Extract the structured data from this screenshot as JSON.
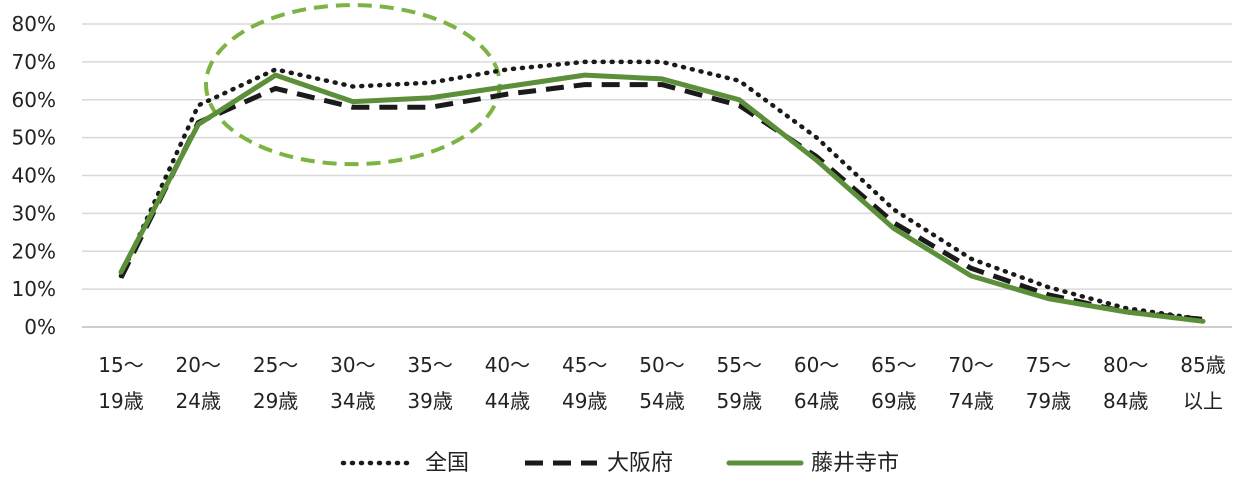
{
  "chart_data": {
    "type": "line",
    "title": "",
    "xlabel": "",
    "ylabel": "",
    "categories": [
      [
        "15～",
        "19歳"
      ],
      [
        "20～",
        "24歳"
      ],
      [
        "25～",
        "29歳"
      ],
      [
        "30～",
        "34歳"
      ],
      [
        "35～",
        "39歳"
      ],
      [
        "40～",
        "44歳"
      ],
      [
        "45～",
        "49歳"
      ],
      [
        "50～",
        "54歳"
      ],
      [
        "55～",
        "59歳"
      ],
      [
        "60～",
        "64歳"
      ],
      [
        "65～",
        "69歳"
      ],
      [
        "70～",
        "74歳"
      ],
      [
        "75～",
        "79歳"
      ],
      [
        "80～",
        "84歳"
      ],
      [
        "85歳",
        "以上"
      ]
    ],
    "ylim": [
      0,
      80
    ],
    "ytick_step": 10,
    "ytick_suffix": "%",
    "grid": true,
    "legend_position": "bottom",
    "series": [
      {
        "name": "全国",
        "style": "dotted",
        "color": "#1a1a1a",
        "values": [
          13.5,
          58.5,
          68,
          63.5,
          64.5,
          68,
          70,
          70,
          65,
          50,
          31,
          18,
          10.5,
          5,
          2
        ]
      },
      {
        "name": "大阪府",
        "style": "dashed",
        "color": "#1a1a1a",
        "values": [
          13,
          54,
          63,
          58,
          58,
          61.5,
          64,
          64,
          58.5,
          45,
          27.5,
          15.5,
          8.5,
          4,
          2
        ]
      },
      {
        "name": "藤井寺市",
        "style": "solid",
        "color": "#5b8f3a",
        "values": [
          14.5,
          53.5,
          66.5,
          59.5,
          60.5,
          63.5,
          66.5,
          65.5,
          60,
          44,
          26,
          13.5,
          7.5,
          4,
          1.5
        ]
      }
    ],
    "annotations": [
      {
        "type": "ellipse",
        "style": "dashed",
        "color": "#7cb342",
        "x_center_category": 3,
        "y_center": 64,
        "x_half_width_categories": 1.9,
        "y_half_height": 21
      }
    ]
  }
}
